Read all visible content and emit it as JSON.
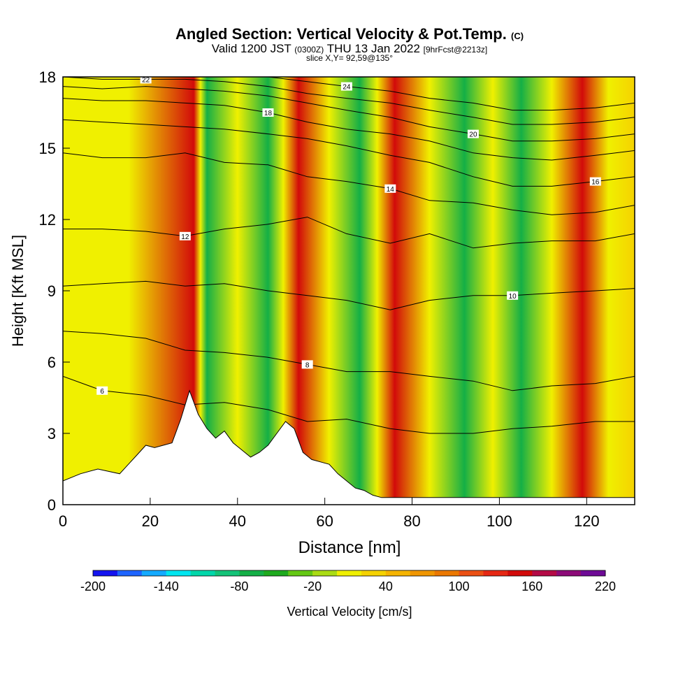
{
  "header": {
    "title": "Angled Section: Vertical Velocity & Pot.Temp.",
    "title_units": "(C)",
    "valid_prefix": "Valid 1200 JST",
    "valid_utc": "(0300Z)",
    "valid_date": "THU 13 Jan 2022",
    "forecast": "[9hrFcst@2213z]",
    "slice": "slice X,Y= 92,59@135°"
  },
  "chart_data": {
    "type": "heatmap",
    "xlabel": "Distance [nm]",
    "ylabel": "Height [Kft MSL]",
    "xlim": [
      0,
      131
    ],
    "ylim": [
      0,
      18
    ],
    "xticks": [
      0,
      20,
      40,
      60,
      80,
      100,
      120
    ],
    "yticks": [
      0,
      3,
      6,
      9,
      12,
      15,
      18
    ],
    "colorbar": {
      "label": "Vertical Velocity [cm/s]",
      "min": -200,
      "max": 220,
      "step": 20,
      "tick_labels": [
        "-200",
        "-140",
        "-80",
        "-20",
        "40",
        "100",
        "160",
        "220"
      ],
      "colors": [
        "#1414f0",
        "#1e64ff",
        "#14aaff",
        "#00e6f0",
        "#00d7aa",
        "#14c378",
        "#14af46",
        "#1eaa1e",
        "#64c814",
        "#aadc14",
        "#f0f000",
        "#f5d200",
        "#f5b400",
        "#f09600",
        "#eb7800",
        "#eb5014",
        "#e62814",
        "#d20a0a",
        "#b40a46",
        "#8c0a78",
        "#6e0a96"
      ]
    },
    "upward_bands_x_nm": [
      30,
      54,
      76,
      119
    ],
    "downward_bands_x_nm": [
      33,
      47,
      68,
      92,
      105
    ],
    "terrain": {
      "x": [
        0,
        4,
        8,
        13,
        15,
        17,
        19,
        21,
        23,
        25,
        27,
        29,
        31,
        33,
        35,
        37,
        39,
        41,
        43,
        45,
        47,
        49,
        51,
        53,
        55,
        57,
        59,
        61,
        63,
        65,
        67,
        69,
        71,
        73,
        75,
        80,
        90,
        100,
        110,
        120,
        131
      ],
      "height_kft": [
        1.0,
        1.3,
        1.5,
        1.3,
        1.7,
        2.1,
        2.5,
        2.4,
        2.5,
        2.6,
        3.6,
        4.8,
        3.8,
        3.2,
        2.8,
        3.1,
        2.6,
        2.3,
        2.0,
        2.2,
        2.5,
        3.0,
        3.5,
        3.2,
        2.2,
        1.9,
        1.8,
        1.7,
        1.3,
        1.0,
        0.7,
        0.6,
        0.4,
        0.3,
        0.3,
        0.3,
        0.3,
        0.3,
        0.3,
        0.3,
        0.3
      ]
    },
    "isentropes": [
      {
        "label": "6",
        "heights_kft": [
          5.4,
          4.8,
          4.6,
          4.2,
          4.3,
          4.0,
          3.5,
          3.6,
          3.2,
          3.0,
          3.0,
          3.2,
          3.3,
          3.5,
          3.5
        ]
      },
      {
        "label": "8",
        "heights_kft": [
          7.3,
          7.2,
          7.0,
          6.5,
          6.4,
          6.2,
          5.9,
          5.6,
          5.6,
          5.4,
          5.2,
          4.8,
          5.0,
          5.1,
          5.4
        ]
      },
      {
        "label": "10",
        "heights_kft": [
          9.2,
          9.3,
          9.4,
          9.2,
          9.3,
          9.0,
          8.8,
          8.6,
          8.2,
          8.6,
          8.8,
          8.8,
          8.9,
          9.0,
          9.1
        ]
      },
      {
        "label": "12",
        "heights_kft": [
          11.6,
          11.6,
          11.5,
          11.3,
          11.6,
          11.8,
          12.1,
          11.4,
          11.0,
          11.4,
          10.8,
          11.0,
          11.1,
          11.1,
          11.4
        ]
      },
      {
        "label": "14",
        "heights_kft": [
          14.8,
          14.6,
          14.6,
          14.8,
          14.4,
          14.3,
          13.8,
          13.6,
          13.3,
          12.8,
          12.7,
          12.4,
          12.2,
          12.3,
          12.6
        ]
      },
      {
        "label": "16",
        "heights_kft": [
          16.2,
          16.1,
          16.0,
          15.9,
          15.8,
          15.6,
          15.4,
          15.1,
          14.7,
          14.4,
          13.8,
          13.4,
          13.4,
          13.6,
          13.8
        ]
      },
      {
        "label": "18",
        "heights_kft": [
          17.1,
          17.0,
          17.0,
          16.9,
          16.8,
          16.5,
          16.1,
          15.8,
          15.6,
          15.3,
          14.8,
          14.6,
          14.5,
          14.7,
          14.9
        ]
      },
      {
        "label": "20",
        "heights_kft": [
          17.6,
          17.5,
          17.6,
          17.5,
          17.4,
          17.2,
          16.9,
          16.6,
          16.3,
          15.9,
          15.6,
          15.3,
          15.3,
          15.4,
          15.6
        ]
      },
      {
        "label": "22",
        "heights_kft": [
          18.0,
          17.9,
          17.9,
          17.9,
          17.8,
          17.6,
          17.3,
          17.1,
          16.9,
          16.6,
          16.3,
          16.0,
          16.0,
          16.1,
          16.3
        ]
      },
      {
        "label": "24",
        "heights_kft": [
          18.0,
          18.0,
          18.0,
          18.0,
          18.0,
          18.0,
          17.8,
          17.6,
          17.4,
          17.1,
          16.9,
          16.6,
          16.6,
          16.7,
          16.9
        ]
      }
    ],
    "isentrope_x_nm": [
      0,
      9,
      19,
      28,
      37,
      47,
      56,
      65,
      75,
      84,
      94,
      103,
      112,
      122,
      131
    ]
  }
}
